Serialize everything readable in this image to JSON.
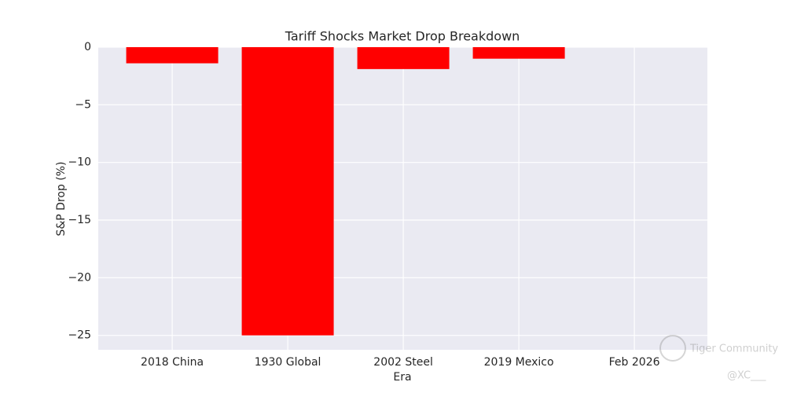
{
  "chart_data": {
    "type": "bar",
    "title": "Tariff Shocks Market Drop Breakdown",
    "x_label": "Era",
    "y_label": "S&P Drop (%)",
    "categories": [
      "2018 China",
      "1930 Global",
      "2002 Steel",
      "2019 Mexico",
      "Feb 2026"
    ],
    "values": [
      -1.4,
      -25,
      -1.9,
      -1.0,
      0
    ],
    "color": "#ff0000",
    "ylim": [
      -26.25,
      0
    ],
    "yticks": [
      0,
      {
        "value": -5,
        "label": "−5"
      },
      {
        "value": -10,
        "label": "−10"
      },
      {
        "value": -15,
        "label": "−15"
      },
      {
        "value": -20,
        "label": "−20"
      },
      {
        "value": -25,
        "label": "−25"
      }
    ],
    "grid": true
  },
  "watermark": {
    "brand": "Tiger Community",
    "handle": "@XC___"
  }
}
